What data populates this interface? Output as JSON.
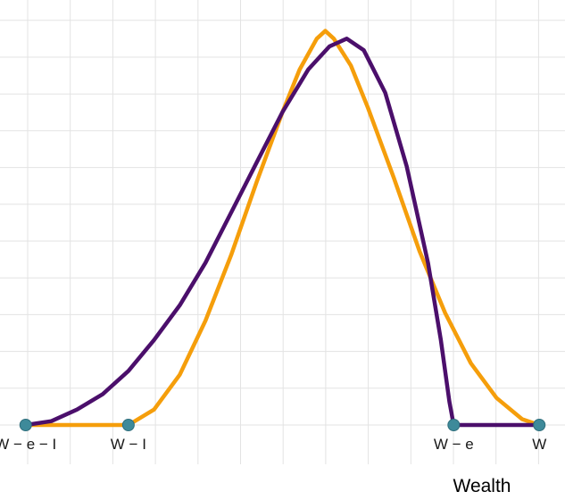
{
  "chart_data": {
    "type": "line",
    "title": "",
    "xlabel": "Wealth",
    "ylabel": "",
    "grid": true,
    "x_ticks": [
      {
        "label": "W − e − I",
        "x": 0
      },
      {
        "label": "W − I",
        "x": 1.2
      },
      {
        "label": "W − e",
        "x": 5.0
      },
      {
        "label": "W",
        "x": 6.0
      }
    ],
    "xlim": [
      -0.3,
      6.3
    ],
    "ylim": [
      0,
      1.1
    ],
    "series": [
      {
        "color": "#F59E0B",
        "points": [
          [
            0.0,
            0.0
          ],
          [
            1.2,
            0.0
          ],
          [
            1.5,
            0.04
          ],
          [
            1.8,
            0.13
          ],
          [
            2.1,
            0.27
          ],
          [
            2.4,
            0.44
          ],
          [
            2.7,
            0.63
          ],
          [
            3.0,
            0.81
          ],
          [
            3.2,
            0.92
          ],
          [
            3.4,
            1.0
          ],
          [
            3.5,
            1.02
          ],
          [
            3.6,
            1.0
          ],
          [
            3.8,
            0.93
          ],
          [
            4.0,
            0.82
          ],
          [
            4.3,
            0.64
          ],
          [
            4.6,
            0.45
          ],
          [
            4.9,
            0.29
          ],
          [
            5.2,
            0.16
          ],
          [
            5.5,
            0.07
          ],
          [
            5.8,
            0.015
          ],
          [
            6.0,
            0.0
          ]
        ]
      },
      {
        "color": "#4B0F6B",
        "points": [
          [
            0.0,
            0.0
          ],
          [
            0.3,
            0.01
          ],
          [
            0.6,
            0.04
          ],
          [
            0.9,
            0.08
          ],
          [
            1.2,
            0.14
          ],
          [
            1.5,
            0.22
          ],
          [
            1.8,
            0.31
          ],
          [
            2.1,
            0.42
          ],
          [
            2.4,
            0.55
          ],
          [
            2.7,
            0.68
          ],
          [
            3.0,
            0.81
          ],
          [
            3.3,
            0.92
          ],
          [
            3.55,
            0.98
          ],
          [
            3.75,
            1.0
          ],
          [
            3.95,
            0.97
          ],
          [
            4.2,
            0.86
          ],
          [
            4.45,
            0.67
          ],
          [
            4.7,
            0.42
          ],
          [
            4.85,
            0.22
          ],
          [
            4.95,
            0.06
          ],
          [
            5.0,
            0.0
          ],
          [
            6.0,
            0.0
          ]
        ]
      }
    ],
    "markers": [
      {
        "x": 0.0,
        "y": 0,
        "color": "#3E8A9A"
      },
      {
        "x": 1.2,
        "y": 0,
        "color": "#3E8A9A"
      },
      {
        "x": 5.0,
        "y": 0,
        "color": "#3E8A9A"
      },
      {
        "x": 6.0,
        "y": 0,
        "color": "#3E8A9A"
      }
    ],
    "colors": {
      "grid": "#E3E3E3",
      "background": "#FFFFFF"
    }
  }
}
